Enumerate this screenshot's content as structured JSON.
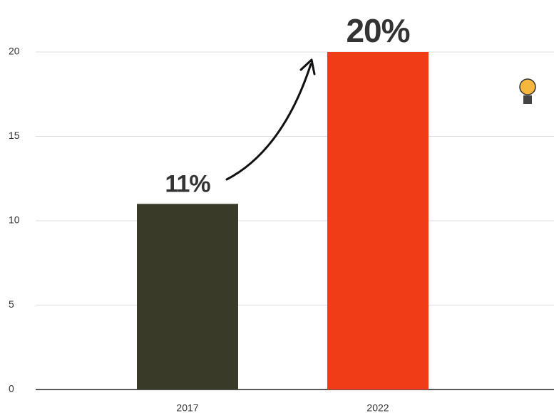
{
  "chart_data": {
    "type": "bar",
    "categories": [
      "2017",
      "2022"
    ],
    "values": [
      11,
      20
    ],
    "value_labels": [
      "11%",
      "20%"
    ],
    "colors": [
      "#3a3a28",
      "#f03c17"
    ],
    "ylim": [
      0,
      20
    ],
    "yticks": [
      0,
      5,
      10,
      15,
      20
    ],
    "grid": true
  }
}
